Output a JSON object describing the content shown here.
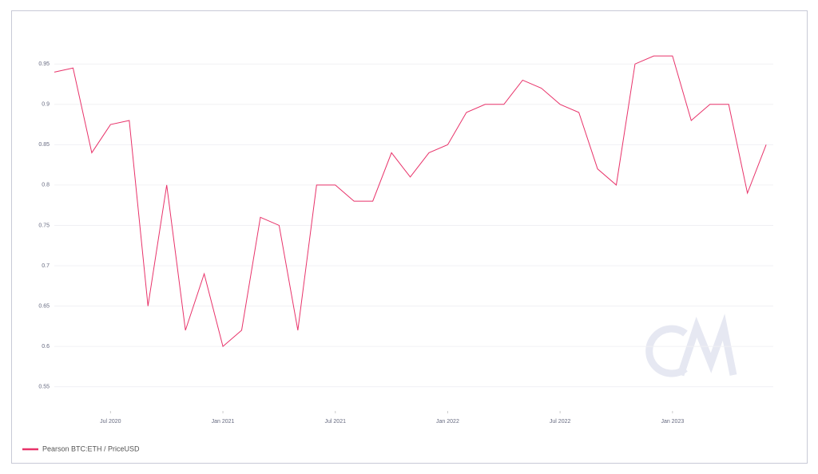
{
  "chart_data": {
    "type": "line",
    "x": [
      "2020-04",
      "2020-05",
      "2020-06",
      "2020-07",
      "2020-08",
      "2020-09",
      "2020-10",
      "2020-11",
      "2020-12",
      "2021-01",
      "2021-02",
      "2021-03",
      "2021-04",
      "2021-05",
      "2021-06",
      "2021-07",
      "2021-08",
      "2021-09",
      "2021-10",
      "2021-11",
      "2021-12",
      "2022-01",
      "2022-02",
      "2022-03",
      "2022-04",
      "2022-05",
      "2022-06",
      "2022-07",
      "2022-08",
      "2022-09",
      "2022-10",
      "2022-11",
      "2022-12",
      "2023-01",
      "2023-02",
      "2023-03",
      "2023-04",
      "2023-05",
      "2023-06"
    ],
    "series": [
      {
        "name": "Pearson BTC:ETH / PriceUSD",
        "color": "#e8336a",
        "values": [
          0.94,
          0.945,
          0.84,
          0.875,
          0.88,
          0.65,
          0.8,
          0.62,
          0.69,
          0.6,
          0.62,
          0.76,
          0.75,
          0.62,
          0.8,
          0.8,
          0.78,
          0.78,
          0.84,
          0.81,
          0.84,
          0.85,
          0.89,
          0.9,
          0.9,
          0.93,
          0.92,
          0.9,
          0.89,
          0.82,
          0.8,
          0.95,
          0.96,
          0.96,
          0.88,
          0.9,
          0.9,
          0.79,
          0.85
        ]
      }
    ],
    "xticks": [
      {
        "value": "2020-07",
        "label": "Jul 2020"
      },
      {
        "value": "2021-01",
        "label": "Jan 2021"
      },
      {
        "value": "2021-07",
        "label": "Jul 2021"
      },
      {
        "value": "2022-01",
        "label": "Jan 2022"
      },
      {
        "value": "2022-07",
        "label": "Jul 2022"
      },
      {
        "value": "2023-01",
        "label": "Jan 2023"
      }
    ],
    "ylim": [
      0.52,
      0.97
    ],
    "yticks": [
      0.55,
      0.6,
      0.65,
      0.7,
      0.75,
      0.8,
      0.85,
      0.9,
      0.95
    ],
    "grid": true,
    "legend": "bottom-left"
  }
}
